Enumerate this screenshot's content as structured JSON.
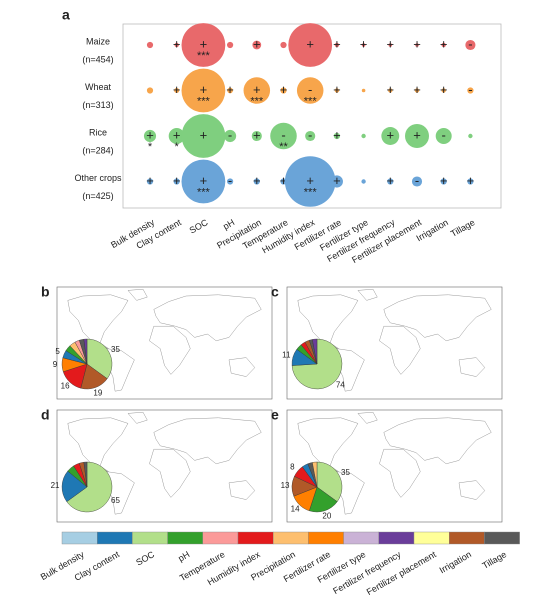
{
  "chart_data": [
    {
      "type": "bubble",
      "label": "a",
      "categories": [
        "Bulk density",
        "Clay content",
        "SOC",
        "pH",
        "Precipitation",
        "Temperature",
        "Humidity index",
        "Fertilizer rate",
        "Fertilizer type",
        "Fertilizer frequency",
        "Fertilizer placement",
        "Irrigation",
        "Tillage"
      ],
      "series": [
        {
          "name": "Maize",
          "n": "(n=454)",
          "color": "#e8696b",
          "values": [
            0.6,
            0.3,
            30,
            0.6,
            1.2,
            0.6,
            30,
            0.3,
            0.2,
            0.2,
            0.2,
            0.3,
            1.6
          ],
          "signs": [
            null,
            "+",
            "+",
            null,
            "+",
            null,
            "+",
            "+",
            "+",
            "+",
            "+",
            "+",
            "-"
          ],
          "stars": [
            null,
            null,
            "***",
            null,
            null,
            null,
            null,
            null,
            null,
            null,
            null,
            null,
            null
          ]
        },
        {
          "name": "Wheat",
          "n": "(n=313)",
          "color": "#f7a54b",
          "values": [
            0.6,
            0.4,
            30,
            0.5,
            11,
            0.6,
            11,
            0.3,
            0.2,
            0.3,
            0.3,
            0.3,
            0.6
          ],
          "signs": [
            null,
            "+",
            "+",
            "+",
            "+",
            "+",
            "-",
            "+",
            null,
            "+",
            "+",
            "+",
            "-"
          ],
          "stars": [
            null,
            null,
            "***",
            null,
            "***",
            null,
            "***",
            null,
            null,
            null,
            null,
            null,
            null
          ]
        },
        {
          "name": "Rice",
          "n": "(n=284)",
          "color": "#7fcf7f",
          "values": [
            2.3,
            4,
            30,
            2.3,
            1.6,
            11,
            1.6,
            0.6,
            0.3,
            5,
            9,
            4,
            0.3
          ],
          "signs": [
            "+",
            "+",
            "+",
            "-",
            "+",
            "-",
            "-",
            "+",
            null,
            "+",
            "+",
            "-",
            null
          ],
          "stars": [
            "*",
            "*",
            null,
            null,
            null,
            "**",
            null,
            null,
            null,
            null,
            null,
            null,
            null
          ]
        },
        {
          "name": "Other crops",
          "n": "(n=425)",
          "color": "#6aa4d8",
          "values": [
            0.6,
            0.6,
            30,
            0.6,
            0.6,
            0.6,
            40,
            2.3,
            0.3,
            0.6,
            1.6,
            0.6,
            0.6
          ],
          "signs": [
            "+",
            "+",
            "+",
            "-",
            "+",
            "+",
            "+",
            "+",
            null,
            "+",
            "-",
            "+",
            "+"
          ],
          "stars": [
            null,
            null,
            "***",
            null,
            null,
            null,
            "***",
            null,
            null,
            null,
            null,
            null,
            null
          ]
        }
      ]
    },
    {
      "type": "map-pie",
      "label": "b",
      "categories": [
        "SOC",
        "Irrigation",
        "Humidity index",
        "Fertilizer rate",
        "Clay content",
        "pH",
        "Precipitation",
        "Temperature",
        "Tillage",
        "Fertilizer frequency"
      ],
      "values": [
        35,
        19,
        16,
        9,
        5,
        4,
        4,
        3,
        3,
        2
      ],
      "value_labels": [
        "35",
        "19",
        "16",
        "9",
        "5",
        null,
        null,
        null,
        null,
        null
      ]
    },
    {
      "type": "map-pie",
      "label": "c",
      "categories": [
        "SOC",
        "Clay content",
        "pH",
        "Humidity index",
        "Irrigation",
        "Tillage",
        "Fertilizer frequency"
      ],
      "values": [
        74,
        11,
        4,
        3,
        3,
        2,
        3
      ],
      "value_labels": [
        "74",
        "11",
        null,
        null,
        null,
        null,
        null
      ]
    },
    {
      "type": "map-pie",
      "label": "d",
      "categories": [
        "SOC",
        "Clay content",
        "pH",
        "Humidity index",
        "Irrigation",
        "Tillage"
      ],
      "values": [
        65,
        21,
        5,
        4,
        3,
        2
      ],
      "value_labels": [
        "65",
        "21",
        null,
        null,
        null,
        null
      ]
    },
    {
      "type": "map-pie",
      "label": "e",
      "categories": [
        "SOC",
        "pH",
        "Fertilizer rate",
        "Irrigation",
        "Humidity index",
        "Clay content",
        "Tillage",
        "Precipitation"
      ],
      "values": [
        35,
        20,
        14,
        13,
        8,
        4,
        3,
        3
      ],
      "value_labels": [
        "35",
        "20",
        "14",
        "13",
        "8",
        null,
        null,
        null
      ]
    },
    {
      "type": "legend",
      "categories": [
        "Bulk density",
        "Clay content",
        "SOC",
        "pH",
        "Temperature",
        "Humidity index",
        "Precipitation",
        "Fertilizer rate",
        "Fertilizer type",
        "Fertilizer frequency",
        "Fertilizer placement",
        "Irrigation",
        "Tillage"
      ],
      "colors": [
        "#a6cee3",
        "#1f78b4",
        "#b2df8a",
        "#33a02c",
        "#fb9a99",
        "#e31a1c",
        "#fdbf6f",
        "#ff7f00",
        "#cab2d6",
        "#6a3d9a",
        "#ffff99",
        "#b15928",
        "#595959"
      ]
    }
  ]
}
